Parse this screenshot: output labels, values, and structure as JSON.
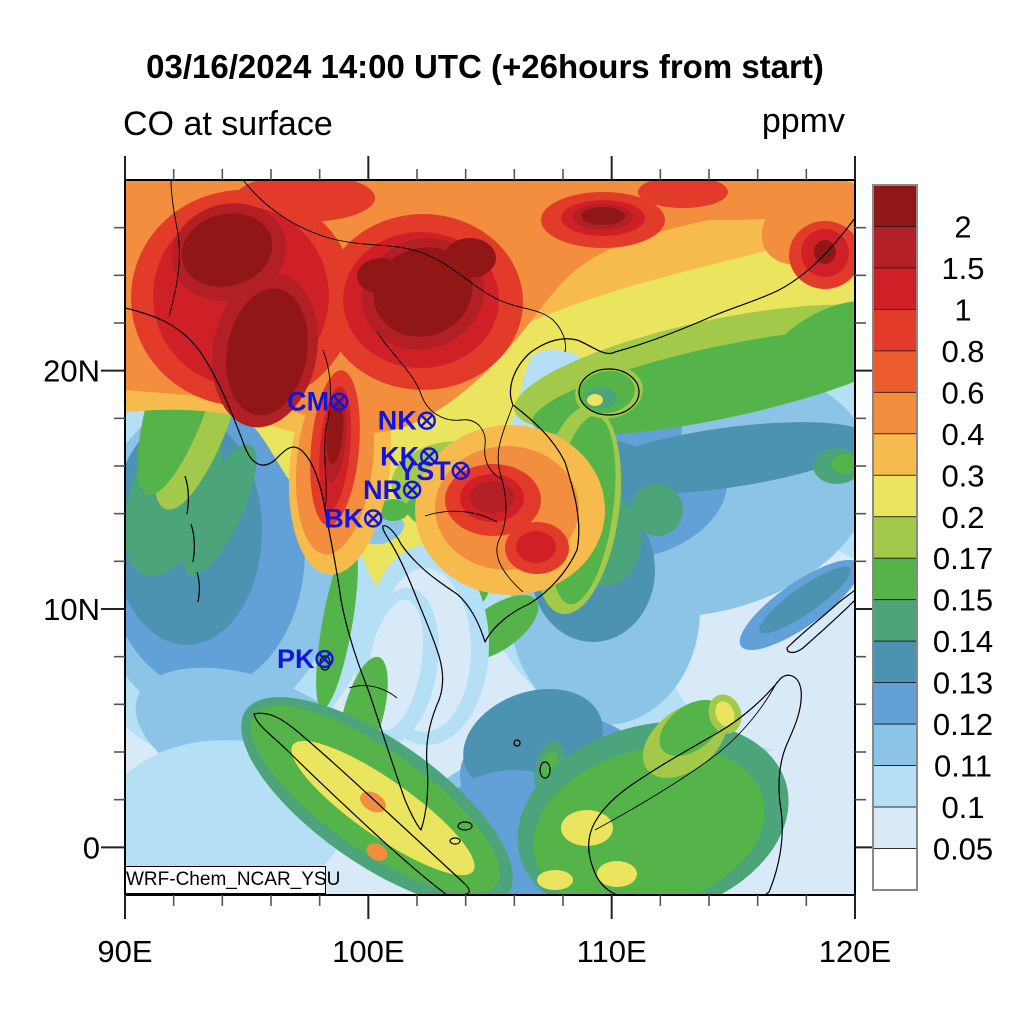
{
  "title": "03/16/2024 14:00 UTC (+26hours from start)",
  "subtitle_left": "CO at surface",
  "units_label": "ppmv",
  "model_label": "WRF-Chem_NCAR_YSU",
  "chart_data": {
    "type": "heatmap",
    "variable": "CO",
    "level": "surface",
    "units": "ppmv",
    "valid_time": "03/16/2024 14:00 UTC",
    "forecast_offset": "+26hours from start",
    "x_axis": {
      "range": [
        90,
        120
      ],
      "major_ticks": [
        90,
        100,
        110,
        120
      ],
      "major_tick_labels": [
        "90E",
        "100E",
        "110E",
        "120E"
      ],
      "minor_step": 2
    },
    "y_axis": {
      "range": [
        -2,
        28
      ],
      "major_ticks": [
        0,
        10,
        20
      ],
      "major_tick_labels": [
        "0",
        "10N",
        "20N"
      ],
      "minor_step": 2
    },
    "colorbar": {
      "tick_labels": [
        "2",
        "1.5",
        "1",
        "0.8",
        "0.6",
        "0.4",
        "0.3",
        "0.2",
        "0.17",
        "0.15",
        "0.14",
        "0.13",
        "0.12",
        "0.11",
        "0.1",
        "0.05"
      ],
      "colors_top_to_bottom": [
        "#911717",
        "#B22025",
        "#D02027",
        "#E23B2A",
        "#ED5C2C",
        "#F28E3E",
        "#F7BB4D",
        "#EAE45F",
        "#A3C94B",
        "#54B449",
        "#4CA57A",
        "#4B93B0",
        "#62A0D8",
        "#8CC4E8",
        "#B4DFF4",
        "#D8EAF8",
        "#FFFFFF"
      ]
    },
    "station_color": "#1414DC",
    "stations": [
      {
        "label": "CM",
        "lon": 98.8,
        "lat": 18.7
      },
      {
        "label": "NK",
        "lon": 102.4,
        "lat": 17.9
      },
      {
        "label": "KK",
        "lon": 102.5,
        "lat": 16.4
      },
      {
        "label": "YST",
        "lon": 103.8,
        "lat": 15.8
      },
      {
        "label": "NR",
        "lon": 101.8,
        "lat": 15.0
      },
      {
        "label": "BK",
        "lon": 100.2,
        "lat": 13.8
      },
      {
        "label": "PK",
        "lon": 98.2,
        "lat": 7.9
      }
    ],
    "base_color_index": 15,
    "field_blobs": [
      [
        14,
        "e",
        95,
        385,
        160,
        200,
        0
      ],
      [
        13,
        "e",
        90,
        380,
        125,
        165,
        0
      ],
      [
        12,
        "e",
        80,
        370,
        100,
        140,
        0
      ],
      [
        11,
        "e",
        62,
        350,
        75,
        115,
        0
      ],
      [
        10,
        "e",
        48,
        315,
        42,
        85,
        20
      ],
      [
        14,
        "e",
        580,
        340,
        240,
        240,
        0
      ],
      [
        15,
        "e",
        660,
        465,
        120,
        105,
        0
      ],
      [
        13,
        "e",
        565,
        310,
        185,
        125,
        -10
      ],
      [
        13,
        "e",
        480,
        430,
        95,
        115,
        0
      ],
      [
        12,
        "e",
        495,
        248,
        62,
        55,
        0
      ],
      [
        12,
        "e",
        520,
        320,
        85,
        55,
        -20
      ],
      [
        11,
        "e",
        600,
        278,
        145,
        30,
        -8
      ],
      [
        11,
        "e",
        478,
        302,
        62,
        42,
        0
      ],
      [
        11,
        "e",
        468,
        390,
        62,
        72,
        0
      ],
      [
        10,
        "e",
        480,
        360,
        36,
        46,
        0
      ],
      [
        10,
        "e",
        532,
        330,
        26,
        26,
        0
      ],
      [
        10,
        "e",
        712,
        286,
        24,
        18,
        0
      ],
      [
        9,
        "e",
        720,
        284,
        13,
        10,
        0
      ],
      [
        13,
        "e",
        130,
        560,
        125,
        62,
        20
      ],
      [
        14,
        "e",
        100,
        640,
        120,
        80,
        0
      ],
      [
        13,
        "e",
        420,
        645,
        125,
        75,
        0
      ],
      [
        12,
        "e",
        430,
        595,
        95,
        62,
        0
      ],
      [
        11,
        "e",
        408,
        562,
        72,
        50,
        -20
      ],
      [
        12,
        "e",
        390,
        660,
        85,
        70,
        0
      ],
      [
        12,
        "e",
        675,
        425,
        72,
        22,
        -35
      ],
      [
        11,
        "e",
        680,
        420,
        55,
        13,
        -35
      ],
      [
        10,
        "e",
        425,
        590,
        15,
        30,
        10
      ],
      [
        9,
        "e",
        425,
        588,
        8,
        17,
        10
      ],
      [
        7,
        "p",
        "M0,0 L730,0 L730,195 C680,212 640,220 600,225 C560,230 530,222 505,210 C488,200 470,185 452,175 C435,168 420,168 408,175 C400,185 398,205 392,225 C385,250 380,270 372,295 C362,330 350,360 338,390 C326,415 310,440 294,452 C275,440 258,420 245,395 C235,372 225,350 210,338 C195,326 180,320 168,305 C152,285 140,255 120,238 C95,218 50,222 0,228 Z"
      ],
      [
        8,
        "e",
        590,
        188,
        205,
        48,
        -12
      ],
      [
        9,
        "e",
        598,
        202,
        195,
        36,
        -12
      ],
      [
        9,
        "e",
        700,
        158,
        62,
        26,
        -28
      ],
      [
        8,
        "e",
        78,
        215,
        34,
        120,
        18
      ],
      [
        9,
        "e",
        58,
        205,
        30,
        115,
        18
      ],
      [
        10,
        "e",
        95,
        330,
        22,
        72,
        25
      ],
      [
        8,
        "e",
        452,
        330,
        42,
        105,
        8
      ],
      [
        9,
        "e",
        458,
        330,
        30,
        95,
        8
      ],
      [
        9,
        "e",
        330,
        420,
        38,
        20,
        -30
      ],
      [
        9,
        "e",
        372,
        448,
        48,
        22,
        -35
      ],
      [
        14,
        "e",
        302,
        465,
        62,
        100,
        0
      ],
      [
        15,
        "e",
        300,
        470,
        46,
        82,
        0
      ],
      [
        13,
        "e",
        258,
        350,
        22,
        13,
        -20
      ],
      [
        14,
        "e",
        272,
        487,
        40,
        80,
        10
      ],
      [
        15,
        "e",
        270,
        485,
        26,
        66,
        10
      ],
      [
        9,
        "e",
        212,
        445,
        15,
        85,
        10
      ],
      [
        9,
        "e",
        238,
        535,
        20,
        60,
        15
      ],
      [
        8,
        "e",
        322,
        298,
        56,
        36,
        -10
      ],
      [
        9,
        "e",
        338,
        282,
        26,
        18,
        0
      ],
      [
        9,
        "e",
        302,
        332,
        22,
        14,
        20
      ],
      [
        9,
        "e",
        268,
        330,
        16,
        11,
        0
      ],
      [
        6,
        "p",
        "M0,0 L730,0 L730,48 C640,72 560,90 500,108 C440,126 380,150 330,180 C290,205 255,235 225,250 C195,262 165,252 135,242 C90,228 45,228 0,232 Z"
      ],
      [
        6,
        "e",
        215,
        285,
        50,
        110,
        6
      ],
      [
        6,
        "e",
        385,
        330,
        95,
        85,
        0
      ],
      [
        5,
        "p",
        "M0,0 L700,0 C660,18 620,32 575,42 C530,52 495,62 465,80 C435,98 420,125 395,155 C370,185 340,215 305,235 C275,252 245,258 220,248 C195,238 165,230 135,224 C90,216 45,214 0,210 Z"
      ],
      [
        5,
        "e",
        210,
        280,
        38,
        95,
        6
      ],
      [
        5,
        "e",
        382,
        328,
        72,
        62,
        0
      ],
      [
        5,
        "e",
        600,
        14,
        140,
        26,
        0
      ],
      [
        5,
        "e",
        688,
        42,
        55,
        38,
        -30
      ],
      [
        3,
        "e",
        118,
        118,
        112,
        108,
        0
      ],
      [
        3,
        "e",
        298,
        122,
        100,
        88,
        0
      ],
      [
        3,
        "e",
        478,
        40,
        62,
        28,
        0
      ],
      [
        3,
        "e",
        558,
        12,
        45,
        16,
        0
      ],
      [
        3,
        "e",
        700,
        75,
        36,
        34,
        0
      ],
      [
        3,
        "e",
        210,
        268,
        24,
        78,
        5
      ],
      [
        3,
        "e",
        368,
        320,
        48,
        36,
        0
      ],
      [
        3,
        "e",
        412,
        368,
        32,
        26,
        0
      ],
      [
        3,
        "e",
        180,
        18,
        70,
        24,
        0
      ],
      [
        2,
        "e",
        116,
        116,
        88,
        90,
        0
      ],
      [
        2,
        "e",
        296,
        120,
        78,
        68,
        0
      ],
      [
        2,
        "e",
        478,
        38,
        42,
        18,
        0
      ],
      [
        2,
        "e",
        700,
        73,
        24,
        24,
        0
      ],
      [
        2,
        "e",
        210,
        268,
        15,
        62,
        5
      ],
      [
        2,
        "e",
        367,
        318,
        32,
        24,
        0
      ],
      [
        2,
        "e",
        411,
        367,
        20,
        16,
        0
      ],
      [
        1,
        "e",
        104,
        72,
        58,
        48,
        -15
      ],
      [
        1,
        "e",
        140,
        170,
        52,
        78,
        10
      ],
      [
        1,
        "e",
        298,
        114,
        62,
        55,
        -20
      ],
      [
        1,
        "e",
        478,
        37,
        30,
        13,
        0
      ],
      [
        1,
        "e",
        210,
        258,
        11,
        45,
        5
      ],
      [
        1,
        "e",
        367,
        317,
        22,
        16,
        0
      ],
      [
        0,
        "e",
        102,
        70,
        46,
        36,
        -15
      ],
      [
        0,
        "e",
        142,
        172,
        40,
        64,
        10
      ],
      [
        0,
        "e",
        298,
        112,
        50,
        44,
        -20
      ],
      [
        0,
        "e",
        345,
        78,
        26,
        20,
        0
      ],
      [
        0,
        "e",
        256,
        96,
        24,
        18,
        0
      ],
      [
        0,
        "e",
        478,
        36,
        22,
        9,
        0
      ],
      [
        0,
        "e",
        210,
        252,
        8,
        32,
        5
      ],
      [
        0,
        "e",
        700,
        72,
        11,
        12,
        0
      ],
      [
        8,
        "e",
        484,
        212,
        34,
        26,
        -10
      ],
      [
        9,
        "e",
        482,
        212,
        28,
        21,
        -10
      ],
      [
        10,
        "e",
        476,
        218,
        16,
        11,
        0
      ],
      [
        7,
        "e",
        470,
        220,
        8,
        6,
        0
      ],
      [
        11,
        "e",
        170,
        558,
        45,
        30,
        35
      ],
      [
        10,
        "e",
        252,
        622,
        160,
        62,
        35
      ],
      [
        9,
        "e",
        250,
        620,
        148,
        50,
        35
      ],
      [
        7,
        "e",
        258,
        628,
        110,
        28,
        35
      ],
      [
        5,
        "e",
        248,
        622,
        14,
        9,
        30
      ],
      [
        5,
        "e",
        252,
        672,
        11,
        8,
        30
      ],
      [
        10,
        "e",
        528,
        640,
        138,
        95,
        -15
      ],
      [
        9,
        "e",
        524,
        648,
        118,
        78,
        -15
      ],
      [
        7,
        "e",
        462,
        648,
        26,
        18,
        0
      ],
      [
        7,
        "e",
        492,
        694,
        20,
        13,
        0
      ],
      [
        8,
        "e",
        560,
        560,
        48,
        30,
        -38
      ],
      [
        9,
        "e",
        566,
        548,
        36,
        22,
        -38
      ],
      [
        8,
        "e",
        600,
        534,
        16,
        20,
        -20
      ],
      [
        7,
        "e",
        600,
        534,
        9,
        13,
        -20
      ],
      [
        7,
        "e",
        430,
        700,
        18,
        10,
        0
      ]
    ],
    "coastlines": [
      "M0,128 C30,135 55,145 74,170 C92,196 106,230 118,262 C126,286 138,290 150,280 C158,272 166,262 176,270 C188,280 196,304 200,330 C206,360 212,390 216,420 C222,452 232,482 244,512 C256,548 268,586 280,620 C286,634 291,644 296,650 C302,632 304,608 302,584 C300,560 306,538 314,520 C320,504 318,486 312,470 C306,452 298,434 290,414 C282,394 272,372 264,360 C259,352 257,348 258,346 C262,344 270,352 276,364 C284,376 298,390 312,400 C320,406 326,410 332,414 C344,424 354,442 360,462 C368,446 386,432 404,424 C424,412 442,392 452,370 C458,340 448,308 440,282 C428,258 408,240 388,225 C380,206 392,184 406,172 C420,162 436,156 452,160 C466,165 480,178 490,172 C520,164 556,150 588,136 C612,126 634,120 654,110 C688,92 712,62 730,38",
      "M454,212 a30,23 0 1 0 60,0 a30,23 0 1 0 -60,0",
      "M129,534 C146,530 162,542 180,558 C206,580 234,606 262,632 C290,658 318,684 340,704 C348,712 344,715 334,715 L322,715 C298,697 272,674 246,650 C218,624 190,598 166,574 C148,556 132,546 129,534 Z",
      "M656,498 C664,492 674,496 676,510 C678,528 670,546 662,564 C654,582 652,606 656,630 C660,658 654,688 644,712 L640,715 L492,715 C480,710 472,700 468,688 C462,672 462,656 470,642 C480,624 498,610 520,596 C544,580 570,566 594,552 C618,538 640,518 656,498 Z",
      "M662,468 C676,454 694,440 712,424 C720,417 728,412 730,410 L730,420 C714,436 696,452 678,468 C670,474 662,474 662,468 Z",
      "M60,296 C64,308 64,322 62,334 M66,344 C70,356 70,370 68,382 M72,392 C75,402 75,412 73,422",
      "M200,476 a5,7 0 1 0 0.1,0",
      "M340,642 a7,4 0 1 0 0.1,0",
      "M330,658 a5,3 0 1 0 0.1,0",
      "M420,582 a5,8 0 1 0 0.1,0",
      "M392,560 a3,3 0 1 0 0.1,0"
    ],
    "borders": [
      "M44,136 C52,108 58,78 52,48 C48,28 46,12 46,0",
      "M118,0 C140,28 170,48 204,58 C240,68 272,62 300,74 C330,86 348,108 374,120 C396,130 414,128 428,140 C438,150 442,162 440,172",
      "M200,330 C204,300 196,272 202,244 C208,218 206,190 198,170",
      "M252,152 C268,176 288,192 296,214 C302,232 318,242 336,240 C352,238 362,250 360,266 C358,282 366,294 378,300",
      "M300,336 C324,328 350,330 372,342",
      "M388,225 C378,252 368,272 376,296 C382,316 384,340 374,360 C366,378 382,398 398,412",
      "M224,508 C242,502 260,508 272,518",
      "M470,650 C510,628 548,606 584,580 C612,560 636,532 652,502"
    ]
  }
}
